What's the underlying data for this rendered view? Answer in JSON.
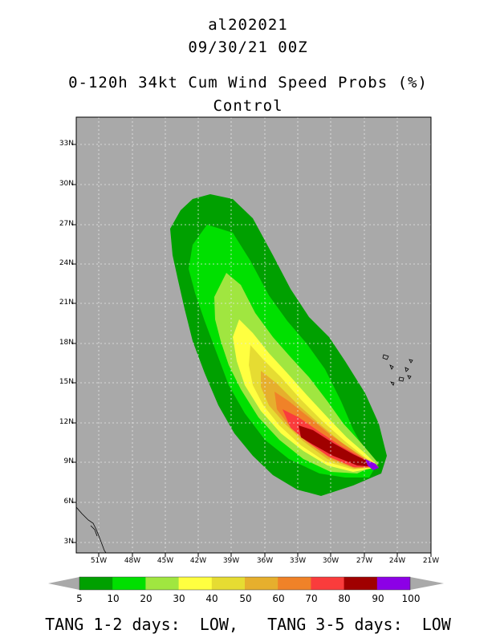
{
  "header": {
    "storm_id": "al202021",
    "datetime": "09/30/21 00Z",
    "product": "0-120h 34kt Cum Wind Speed Probs (%)",
    "run": "Control"
  },
  "map": {
    "latitude_labels": [
      "33N",
      "30N",
      "27N",
      "24N",
      "21N",
      "18N",
      "15N",
      "12N",
      "9N",
      "6N",
      "3N"
    ],
    "longitude_labels": [
      "51W",
      "48W",
      "45W",
      "42W",
      "39W",
      "36W",
      "33W",
      "30W",
      "27W",
      "24W",
      "21W"
    ],
    "ocean_color": "#a9a9a9",
    "probability_areas": [
      "5-10",
      "10-20",
      "20-30",
      "30-40",
      "40-50",
      "50-60",
      "60-70",
      "70-80",
      "80-90",
      "90-100"
    ]
  },
  "colorbar": {
    "labels": [
      "5",
      "10",
      "20",
      "30",
      "40",
      "50",
      "60",
      "70",
      "80",
      "90",
      "100"
    ],
    "colors": [
      "#00a000",
      "#00e000",
      "#a0e640",
      "#ffff40",
      "#e6dc32",
      "#e6af2d",
      "#f08228",
      "#fa3c3c",
      "#a00000",
      "#8c00e6"
    ],
    "end_color": "#a9a9a9"
  },
  "footer": {
    "text": "TANG 1-2 days:  LOW,   TANG 3-5 days:  LOW"
  }
}
